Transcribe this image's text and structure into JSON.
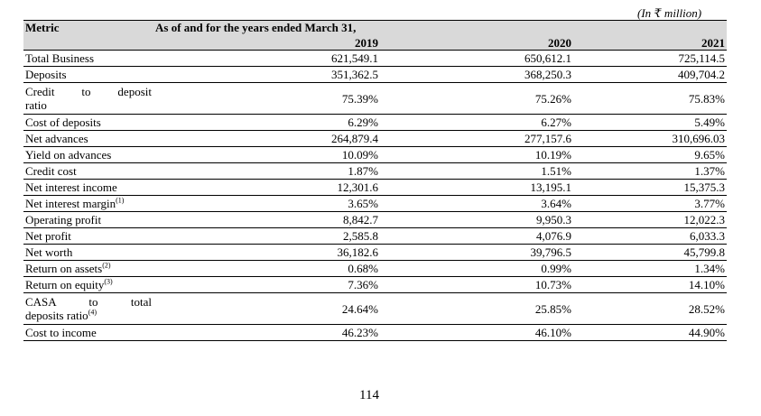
{
  "units_note": "(In ₹ million)",
  "header": {
    "metric": "Metric",
    "period": "As of and for the years ended March 31,",
    "years": [
      "2019",
      "2020",
      "2021"
    ]
  },
  "rows": [
    {
      "label": "Total Business",
      "v": [
        "621,549.1",
        "650,612.1",
        "725,114.5"
      ]
    },
    {
      "label": "Deposits",
      "v": [
        "351,362.5",
        "368,250.3",
        "409,704.2"
      ]
    },
    {
      "label": "Credit to deposit",
      "label2": "ratio",
      "v": [
        "75.39%",
        "75.26%",
        "75.83%"
      ]
    },
    {
      "label": "Cost of deposits",
      "v": [
        "6.29%",
        "6.27%",
        "5.49%"
      ]
    },
    {
      "label": "Net advances",
      "v": [
        "264,879.4",
        "277,157.6",
        "310,696.03"
      ]
    },
    {
      "label": "Yield on advances",
      "v": [
        "10.09%",
        "10.19%",
        "9.65%"
      ]
    },
    {
      "label": "Credit cost",
      "v": [
        "1.87%",
        "1.51%",
        "1.37%"
      ]
    },
    {
      "label": "Net interest income",
      "v": [
        "12,301.6",
        "13,195.1",
        "15,375.3"
      ]
    },
    {
      "label": "Net interest margin",
      "sup": "(1)",
      "v": [
        "3.65%",
        "3.64%",
        "3.77%"
      ]
    },
    {
      "label": "Operating profit",
      "v": [
        "8,842.7",
        "9,950.3",
        "12,022.3"
      ]
    },
    {
      "label": "Net profit",
      "v": [
        "2,585.8",
        "4,076.9",
        "6,033.3"
      ]
    },
    {
      "label": "Net worth",
      "v": [
        "36,182.6",
        "39,796.5",
        "45,799.8"
      ]
    },
    {
      "label": "Return on assets",
      "sup": "(2)",
      "v": [
        "0.68%",
        "0.99%",
        "1.34%"
      ]
    },
    {
      "label": "Return on equity",
      "sup": "(3)",
      "v": [
        "7.36%",
        "10.73%",
        "14.10%"
      ]
    },
    {
      "label": "CASA to total",
      "label2": "deposits ratio",
      "sup": "(4)",
      "v": [
        "24.64%",
        "25.85%",
        "28.52%"
      ]
    },
    {
      "label": "Cost to income",
      "v": [
        "46.23%",
        "46.10%",
        "44.90%"
      ]
    }
  ],
  "page_number": "114"
}
